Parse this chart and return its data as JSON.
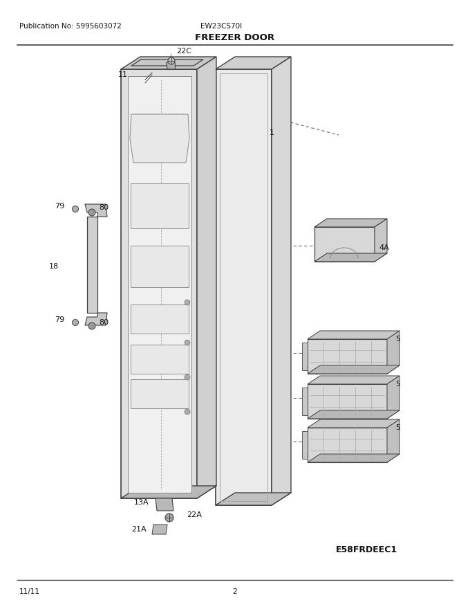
{
  "title": "FREEZER DOOR",
  "pub_no": "Publication No: 5995603072",
  "model": "EW23CS70I",
  "diagram_code": "E58FRDEEC1",
  "date": "11/11",
  "page": "2",
  "bg_color": "#ffffff",
  "line_color": "#404040",
  "figsize": [
    6.8,
    8.8
  ],
  "dpi": 100
}
